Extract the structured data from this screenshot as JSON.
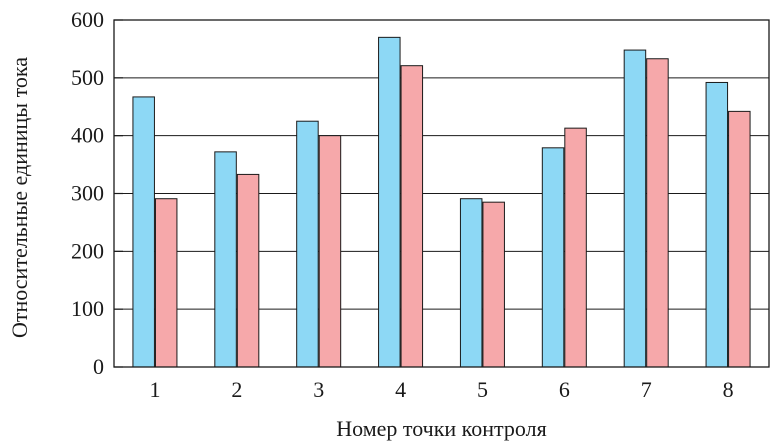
{
  "chart_data": {
    "type": "bar",
    "title": "",
    "xlabel": "Номер точки контроля",
    "ylabel": "Относительные единицы тока",
    "categories": [
      "1",
      "2",
      "3",
      "4",
      "5",
      "6",
      "7",
      "8"
    ],
    "series": [
      {
        "color": "#8dd8f5",
        "values": [
          467,
          372,
          425,
          570,
          291,
          379,
          548,
          492
        ]
      },
      {
        "color": "#f6a8aa",
        "values": [
          291,
          333,
          400,
          521,
          285,
          413,
          533,
          442
        ]
      }
    ],
    "ylim": [
      0,
      600
    ],
    "yticks": [
      "0",
      "100",
      "200",
      "300",
      "400",
      "500",
      "600"
    ],
    "grid": "horizontal",
    "legend": "none"
  }
}
